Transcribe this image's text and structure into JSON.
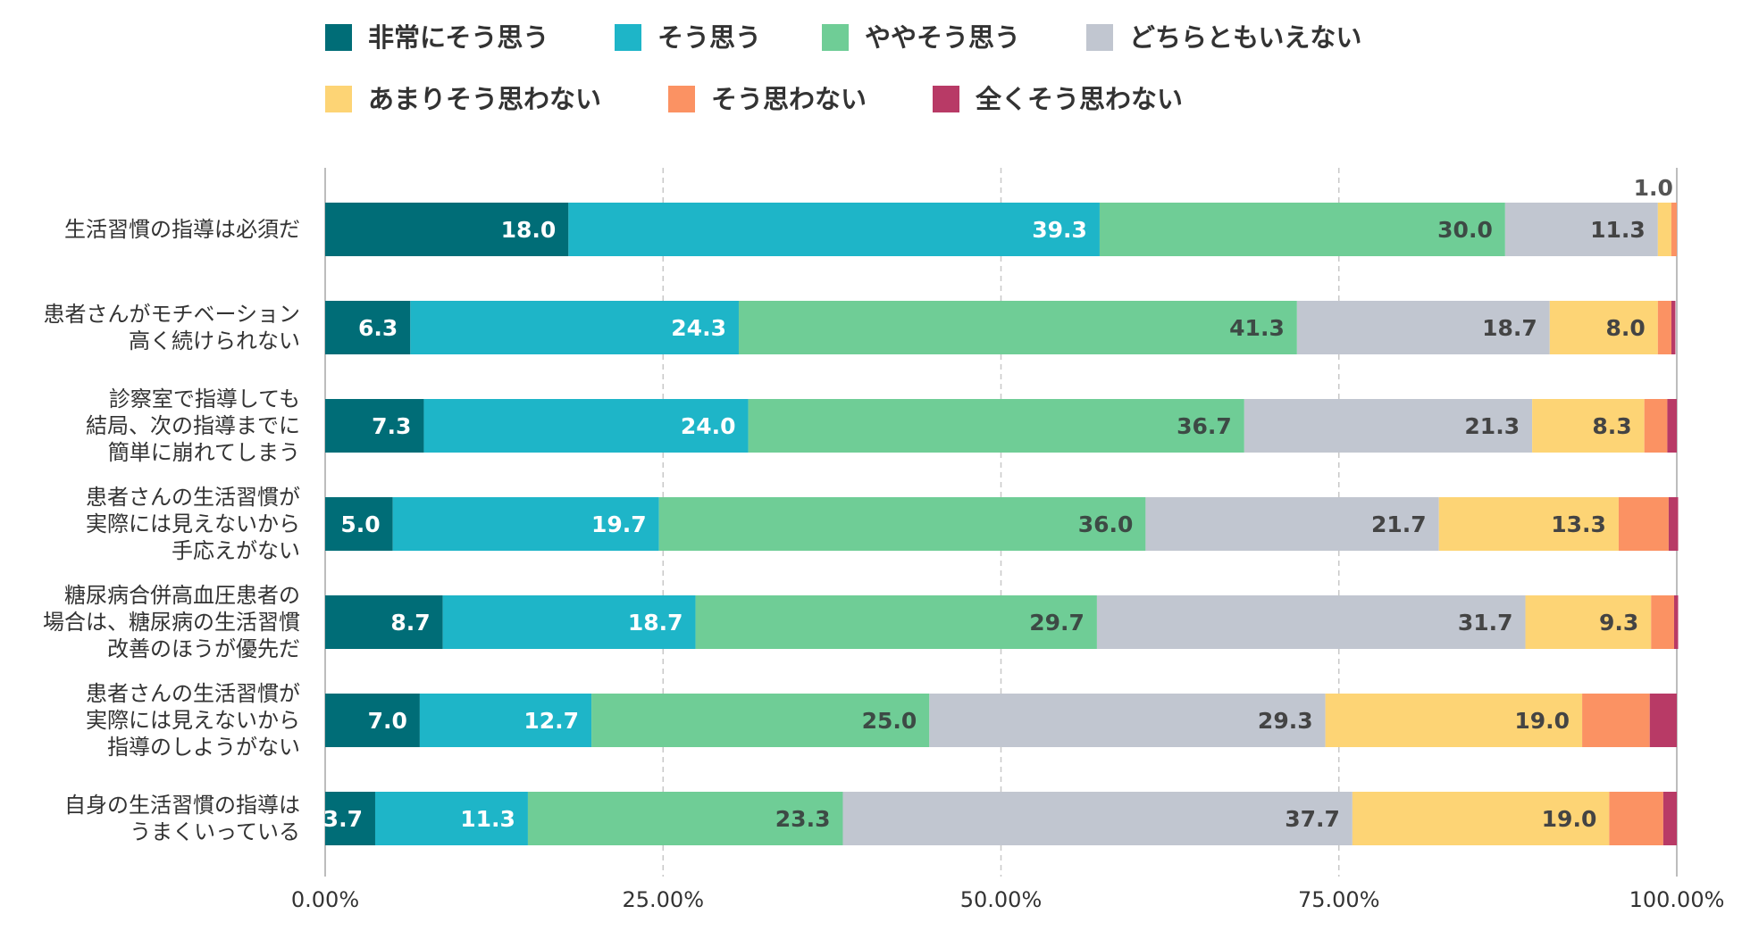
{
  "chart_data": {
    "type": "bar",
    "orientation": "horizontal",
    "stacked": true,
    "grid": true,
    "legend_position": "top",
    "xlim": [
      0,
      100
    ],
    "x_ticks": [
      "0.00%",
      "25.00%",
      "50.00%",
      "75.00%",
      "100.00%"
    ],
    "categories": [
      [
        "生活習慣の指導は必須だ"
      ],
      [
        "患者さんがモチベーション",
        "高く続けられない"
      ],
      [
        "診察室で指導しても",
        "結局、次の指導までに",
        "簡単に崩れてしまう"
      ],
      [
        "患者さんの生活習慣が",
        "実際には見えないから",
        "手応えがない"
      ],
      [
        "糖尿病合併高血圧患者の",
        "場合は、糖尿病の生活習慣",
        "改善のほうが優先だ"
      ],
      [
        "患者さんの生活習慣が",
        "実際には見えないから",
        "指導のしようがない"
      ],
      [
        "自身の生活習慣の指導は",
        "うまくいっている"
      ]
    ],
    "series": [
      {
        "name": "非常にそう思う",
        "color": "#006d77",
        "label_color": "#ffffff",
        "values": [
          18.0,
          6.3,
          7.3,
          5.0,
          8.7,
          7.0,
          3.7
        ]
      },
      {
        "name": "そう思う",
        "color": "#1eb5c8",
        "label_color": "#ffffff",
        "values": [
          39.3,
          24.3,
          24.0,
          19.7,
          18.7,
          12.7,
          11.3
        ]
      },
      {
        "name": "ややそう思う",
        "color": "#6fcd96",
        "label_color": "#3d4a45",
        "values": [
          30.0,
          41.3,
          36.7,
          36.0,
          29.7,
          25.0,
          23.3
        ]
      },
      {
        "name": "どちらともいえない",
        "color": "#c1c6d0",
        "label_color": "#444444",
        "values": [
          11.3,
          18.7,
          21.3,
          21.7,
          31.7,
          29.3,
          37.7
        ]
      },
      {
        "name": "あまりそう思わない",
        "color": "#fdd475",
        "label_color": "#444444",
        "values": [
          1.0,
          8.0,
          8.3,
          13.3,
          9.3,
          19.0,
          19.0
        ]
      },
      {
        "name": "そう思わない",
        "color": "#fb9263",
        "label_color": "#444444",
        "values": [
          0.4,
          1.0,
          1.7,
          3.7,
          1.7,
          5.0,
          4.0
        ]
      },
      {
        "name": "全くそう思わない",
        "color": "#b83a66",
        "label_color": "#444444",
        "values": [
          0.0,
          0.3,
          0.7,
          0.7,
          0.3,
          2.0,
          1.0
        ]
      }
    ],
    "value_labels": [
      [
        {
          "s": 0,
          "text": "18.0"
        },
        {
          "s": 1,
          "text": "39.3"
        },
        {
          "s": 2,
          "text": "30.0"
        },
        {
          "s": 3,
          "text": "11.3"
        },
        {
          "s": 4,
          "text": "1.0",
          "above": true
        }
      ],
      [
        {
          "s": 0,
          "text": "6.3"
        },
        {
          "s": 1,
          "text": "24.3"
        },
        {
          "s": 2,
          "text": "41.3"
        },
        {
          "s": 3,
          "text": "18.7"
        },
        {
          "s": 4,
          "text": "8.0"
        }
      ],
      [
        {
          "s": 0,
          "text": "7.3"
        },
        {
          "s": 1,
          "text": "24.0"
        },
        {
          "s": 2,
          "text": "36.7"
        },
        {
          "s": 3,
          "text": "21.3"
        },
        {
          "s": 4,
          "text": "8.3"
        }
      ],
      [
        {
          "s": 0,
          "text": "5.0"
        },
        {
          "s": 1,
          "text": "19.7"
        },
        {
          "s": 2,
          "text": "36.0"
        },
        {
          "s": 3,
          "text": "21.7"
        },
        {
          "s": 4,
          "text": "13.3"
        }
      ],
      [
        {
          "s": 0,
          "text": "8.7"
        },
        {
          "s": 1,
          "text": "18.7"
        },
        {
          "s": 2,
          "text": "29.7"
        },
        {
          "s": 3,
          "text": "31.7"
        },
        {
          "s": 4,
          "text": "9.3"
        }
      ],
      [
        {
          "s": 0,
          "text": "7.0"
        },
        {
          "s": 1,
          "text": "12.7"
        },
        {
          "s": 2,
          "text": "25.0"
        },
        {
          "s": 3,
          "text": "29.3"
        },
        {
          "s": 4,
          "text": "19.0"
        }
      ],
      [
        {
          "s": 0,
          "text": "3.7"
        },
        {
          "s": 1,
          "text": "11.3"
        },
        {
          "s": 2,
          "text": "23.3"
        },
        {
          "s": 3,
          "text": "37.7"
        },
        {
          "s": 4,
          "text": "19.0"
        }
      ]
    ]
  }
}
